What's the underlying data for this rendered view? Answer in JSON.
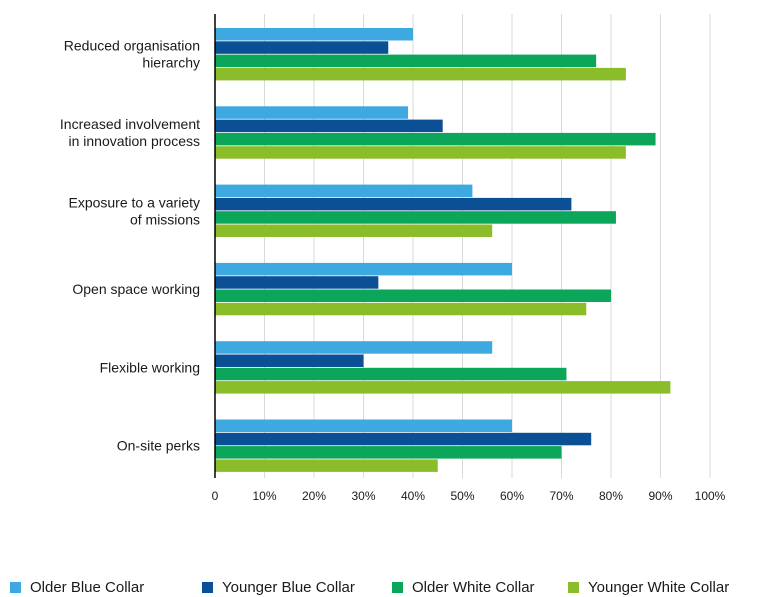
{
  "chart_data": {
    "type": "bar",
    "orientation": "horizontal",
    "categories": [
      [
        "Reduced organisation",
        "hierarchy"
      ],
      [
        "Increased involvement",
        "in innovation process"
      ],
      [
        "Exposure to a variety",
        "of missions"
      ],
      [
        "Open space working"
      ],
      [
        "Flexible working"
      ],
      [
        "On-site perks"
      ]
    ],
    "series": [
      {
        "name": "Older Blue Collar",
        "color": "#3ea8e0",
        "values": [
          40,
          39,
          52,
          60,
          56,
          60
        ]
      },
      {
        "name": "Younger Blue Collar",
        "color": "#0b4f95",
        "values": [
          35,
          46,
          72,
          33,
          30,
          76
        ]
      },
      {
        "name": "Older White Collar",
        "color": "#0ba65a",
        "values": [
          77,
          89,
          81,
          80,
          71,
          70
        ]
      },
      {
        "name": "Younger White Collar",
        "color": "#8bbd2b",
        "values": [
          83,
          83,
          56,
          75,
          92,
          45
        ]
      }
    ],
    "xlim": [
      0,
      100
    ],
    "xticks": [
      "0",
      "10%",
      "20%",
      "30%",
      "40%",
      "50%",
      "60%",
      "70%",
      "80%",
      "90%",
      "100%"
    ],
    "grid": true,
    "legend_position": "bottom",
    "title": "",
    "xlabel": "",
    "ylabel": ""
  }
}
